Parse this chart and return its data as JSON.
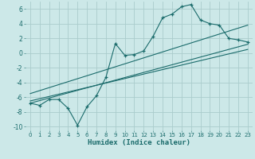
{
  "title": "",
  "xlabel": "Humidex (Indice chaleur)",
  "bg_color": "#cce8e8",
  "grid_color": "#aacccc",
  "line_color": "#1a6b6b",
  "xlim": [
    -0.5,
    23.5
  ],
  "ylim": [
    -10.5,
    7.0
  ],
  "xticks": [
    0,
    1,
    2,
    3,
    4,
    5,
    6,
    7,
    8,
    9,
    10,
    11,
    12,
    13,
    14,
    15,
    16,
    17,
    18,
    19,
    20,
    21,
    22,
    23
  ],
  "yticks": [
    -10,
    -8,
    -6,
    -4,
    -2,
    0,
    2,
    4,
    6
  ],
  "main_x": [
    0,
    1,
    2,
    3,
    4,
    5,
    6,
    7,
    8,
    9,
    10,
    11,
    12,
    13,
    14,
    15,
    16,
    17,
    18,
    19,
    20,
    21,
    22,
    23
  ],
  "main_y": [
    -6.8,
    -7.1,
    -6.3,
    -6.3,
    -7.5,
    -9.8,
    -7.3,
    -5.8,
    -3.3,
    1.3,
    -0.3,
    -0.2,
    0.3,
    2.3,
    4.8,
    5.3,
    6.3,
    6.6,
    4.5,
    4.0,
    3.8,
    2.0,
    1.8,
    1.5
  ],
  "line1_x": [
    0,
    23
  ],
  "line1_y": [
    -6.8,
    1.2
  ],
  "line2_x": [
    0,
    23
  ],
  "line2_y": [
    -6.5,
    0.5
  ],
  "line3_x": [
    0,
    23
  ],
  "line3_y": [
    -5.5,
    3.8
  ]
}
